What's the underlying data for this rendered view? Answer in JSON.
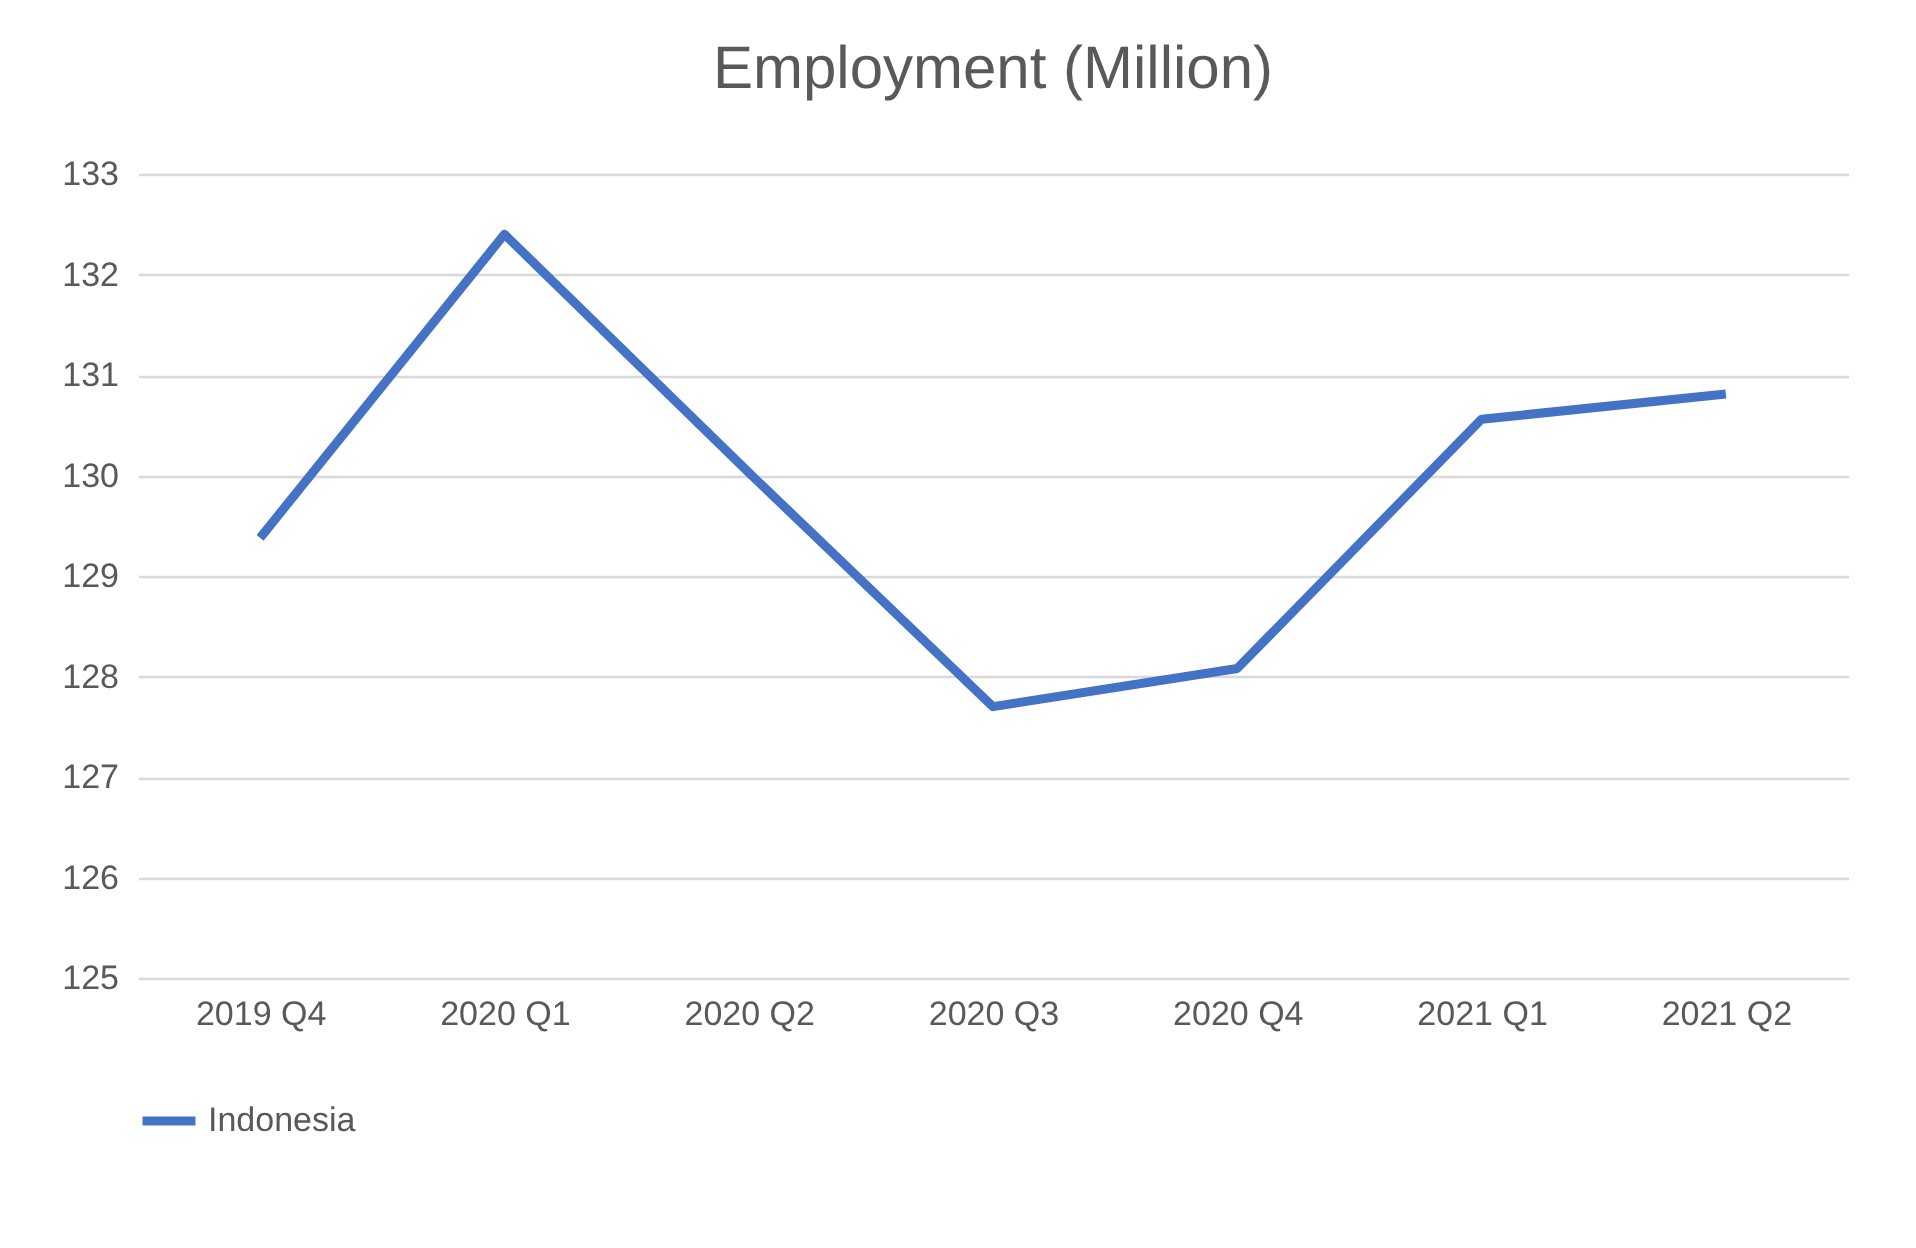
{
  "chart_data": {
    "type": "line",
    "title": "Employment (Million)",
    "categories": [
      "2019 Q4",
      "2020 Q1",
      "2020 Q2",
      "2020 Q3",
      "2020 Q4",
      "2021 Q1",
      "2021 Q2"
    ],
    "series": [
      {
        "name": "Indonesia",
        "color": "#4472c4",
        "values": [
          129.38,
          132.4,
          130.03,
          127.7,
          128.08,
          130.56,
          130.81
        ]
      }
    ],
    "ylim": [
      125,
      133
    ],
    "yticks": [
      125,
      126,
      127,
      128,
      129,
      130,
      131,
      132,
      133
    ],
    "grid": "y",
    "legend": "bottom",
    "marker": "none",
    "line_style": "solid"
  }
}
